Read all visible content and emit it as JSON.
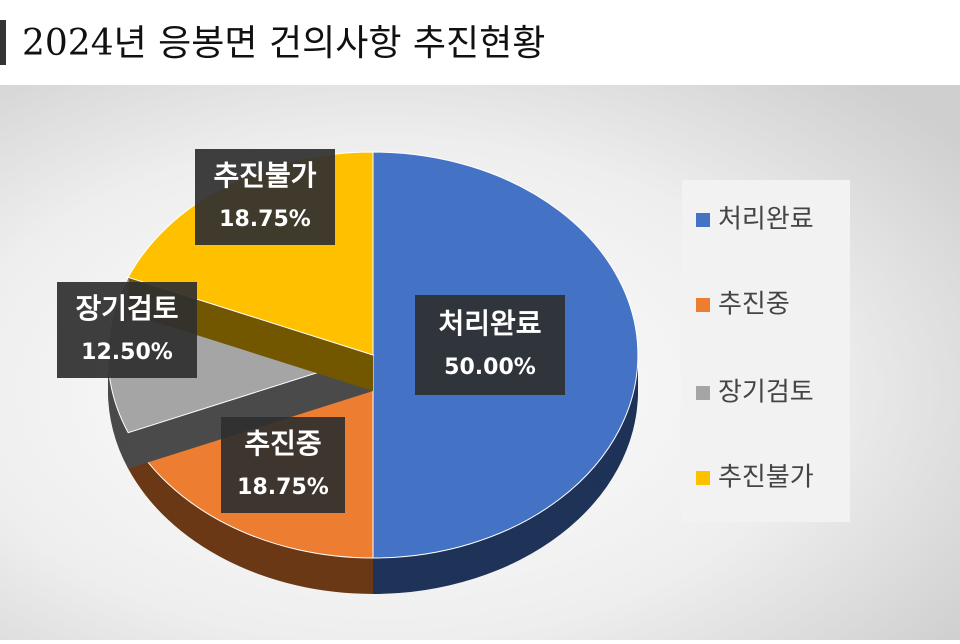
{
  "chart_data": {
    "type": "pie",
    "title": "2024년 응봉면 건의사항 추진현황",
    "categories": [
      "처리완료",
      "추진중",
      "장기검토",
      "추진불가"
    ],
    "values": [
      50,
      18.75,
      12.5,
      18.75
    ],
    "value_labels": [
      "50.00%",
      "18.75%",
      "12.50%",
      "18.75%"
    ],
    "colors": [
      "#4472c4",
      "#ed7d31",
      "#a5a5a5",
      "#ffc000"
    ],
    "legend": "right"
  }
}
